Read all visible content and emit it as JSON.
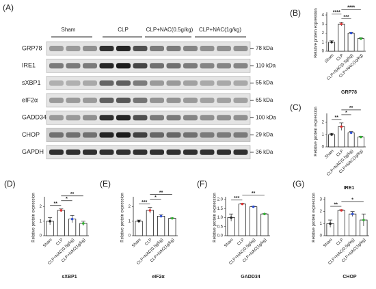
{
  "blot": {
    "panel": "(A)",
    "groups": [
      "Sham",
      "CLP",
      "CLP+NAC(0.5g/kg)",
      "CLP+NAC(1g/kg)"
    ],
    "rows": [
      {
        "name": "GRP78",
        "size": "78 kDa"
      },
      {
        "name": "IRE1",
        "size": "110 kDa"
      },
      {
        "name": "sXBP1",
        "size": "55 kDa"
      },
      {
        "name": "eIF2α",
        "size": "65 kDa"
      },
      {
        "name": "GADD34",
        "size": "100 kDa"
      },
      {
        "name": "CHOP",
        "size": "29 kDa"
      },
      {
        "name": "GAPDH",
        "size": "36 kDa"
      }
    ]
  },
  "chart_data": [
    {
      "type": "bar",
      "panel": "(B)",
      "xlabel": "GRP78",
      "ylabel": "Relative protein expression",
      "categories": [
        "Sham",
        "CLP",
        "CLP+NAC(0.5g/kg)",
        "CLP+NAC(1g/kg)"
      ],
      "values": [
        1.0,
        3.0,
        2.0,
        1.4
      ],
      "errors": [
        0.15,
        0.2,
        0.08,
        0.1
      ],
      "colors": [
        "#222222",
        "#e03030",
        "#3050d0",
        "#30b030"
      ],
      "ylim": [
        0,
        4
      ],
      "yticks": [
        0,
        1,
        2,
        3,
        4
      ],
      "brackets": [
        {
          "label": "***",
          "between": [
            1,
            2
          ]
        },
        {
          "label": "****",
          "between": [
            0,
            1
          ]
        },
        {
          "label": "****",
          "between": [
            1,
            3
          ]
        }
      ]
    },
    {
      "type": "bar",
      "panel": "(C)",
      "xlabel": "IRE1",
      "ylabel": "Relative protein expression",
      "categories": [
        "Sham",
        "CLP",
        "CLP+NAC(0.5g/kg)",
        "CLP+NAC(1g/kg)"
      ],
      "values": [
        1.0,
        1.65,
        1.15,
        0.8
      ],
      "errors": [
        0.1,
        0.3,
        0.1,
        0.05
      ],
      "colors": [
        "#222222",
        "#e03030",
        "#3050d0",
        "#30b030"
      ],
      "ylim": [
        0,
        2.5
      ],
      "yticks": [
        0,
        1,
        2
      ],
      "brackets": [
        {
          "label": "**",
          "between": [
            0,
            1
          ]
        },
        {
          "label": "*",
          "between": [
            1,
            2
          ]
        },
        {
          "label": "**",
          "between": [
            1,
            3
          ]
        }
      ]
    },
    {
      "type": "bar",
      "panel": "(D)",
      "xlabel": "sXBP1",
      "ylabel": "Relative protein expression",
      "categories": [
        "Sham",
        "CLP",
        "CLP+NAC(0.5g/kg)",
        "CLP+NAC(1g/kg)"
      ],
      "values": [
        1.0,
        1.75,
        1.15,
        0.85
      ],
      "errors": [
        0.25,
        0.1,
        0.25,
        0.15
      ],
      "colors": [
        "#222222",
        "#e03030",
        "#3050d0",
        "#30b030"
      ],
      "ylim": [
        0,
        2.5
      ],
      "yticks": [
        0,
        1,
        2
      ],
      "brackets": [
        {
          "label": "**",
          "between": [
            0,
            1
          ]
        },
        {
          "label": "*",
          "between": [
            1,
            2
          ]
        },
        {
          "label": "**",
          "between": [
            1,
            3
          ]
        }
      ]
    },
    {
      "type": "bar",
      "panel": "(E)",
      "xlabel": "eIF2α",
      "ylabel": "Relative protein expression",
      "categories": [
        "Sham",
        "CLP",
        "CLP+NAC(0.5g/kg)",
        "CLP+NAC(1g/kg)"
      ],
      "values": [
        1.0,
        1.75,
        1.35,
        1.2
      ],
      "errors": [
        0.08,
        0.2,
        0.1,
        0.03
      ],
      "colors": [
        "#222222",
        "#e03030",
        "#3050d0",
        "#30b030"
      ],
      "ylim": [
        0,
        2.5
      ],
      "yticks": [
        0,
        1,
        2
      ],
      "brackets": [
        {
          "label": "***",
          "between": [
            0,
            1
          ]
        },
        {
          "label": "*",
          "between": [
            1,
            2
          ]
        },
        {
          "label": "**",
          "between": [
            1,
            3
          ]
        }
      ]
    },
    {
      "type": "bar",
      "panel": "(F)",
      "xlabel": "GADD34",
      "ylabel": "Relative protein expression",
      "categories": [
        "Sham",
        "CLP",
        "CLP+NAC(0.5g/kg)",
        "CLP+NAC(1g/kg)"
      ],
      "values": [
        1.0,
        1.75,
        1.6,
        1.2
      ],
      "errors": [
        0.2,
        0.03,
        0.03,
        0.02
      ],
      "colors": [
        "#222222",
        "#e03030",
        "#3050d0",
        "#30b030"
      ],
      "ylim": [
        0,
        2
      ],
      "yticks": [
        {
          "value": 0,
          "label": "0.0"
        },
        {
          "value": 0.5,
          "label": "0.5"
        },
        {
          "value": 1,
          "label": "1.0"
        },
        {
          "value": 1.5,
          "label": "1.5"
        },
        {
          "value": 2,
          "label": "2.0"
        }
      ],
      "brackets": [
        {
          "label": "***",
          "between": [
            0,
            1
          ]
        },
        {
          "label": "**",
          "between": [
            1,
            3
          ]
        }
      ]
    },
    {
      "type": "bar",
      "panel": "(G)",
      "xlabel": "CHOP",
      "ylabel": "Relative protein expression",
      "categories": [
        "Sham",
        "CLP",
        "CLP+NAC(0.5g/kg)",
        "CLP+NAC(1g/kg)"
      ],
      "values": [
        1.0,
        2.1,
        1.8,
        1.3
      ],
      "errors": [
        0.3,
        0.05,
        0.2,
        0.5
      ],
      "colors": [
        "#222222",
        "#e03030",
        "#3050d0",
        "#30b030"
      ],
      "ylim": [
        0,
        3
      ],
      "yticks": [
        0,
        1,
        2,
        3
      ],
      "brackets": [
        {
          "label": "**",
          "between": [
            0,
            1
          ]
        },
        {
          "label": "*",
          "between": [
            1,
            3
          ]
        }
      ]
    }
  ]
}
